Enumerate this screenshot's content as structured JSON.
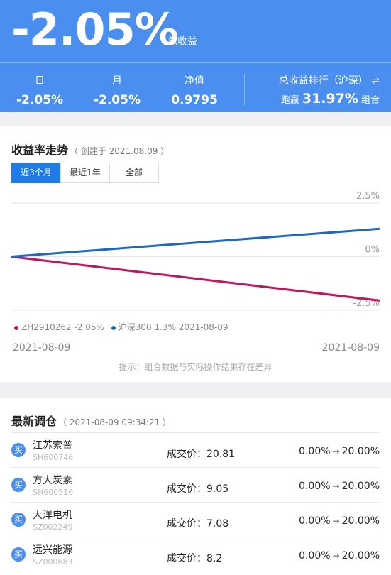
{
  "header": {
    "total_return": "-2.05%",
    "total_return_label": "总收益",
    "stats": [
      {
        "label": "日",
        "value": "-2.05%"
      },
      {
        "label": "月",
        "value": "-2.05%"
      },
      {
        "label": "净值",
        "value": "0.9795"
      }
    ],
    "rank_label": "总收益排行（沪深）",
    "rank_icon": "swap-icon",
    "rank_prefix": "跑赢",
    "rank_value": "31.97%",
    "rank_suffix": "组合"
  },
  "trend": {
    "title": "收益率走势",
    "created": "（ 创建于 2021.08.09 ）",
    "tabs": [
      "近3个月",
      "最近1年",
      "全部"
    ],
    "active_tab": 0,
    "tip": "提示：组合数据与实际操作结果存在差异",
    "legend_text": [
      "ZH2910262 -2.05%",
      "沪深300 1.3% 2021-08-09"
    ],
    "x_start": "2021-08-09",
    "x_end": "2021-08-09"
  },
  "chart_data": {
    "type": "line",
    "y_tick_labels": [
      "2.5%",
      "0%",
      "-2.5%"
    ],
    "ylim": [
      -2.5,
      2.5
    ],
    "x": [
      0,
      1
    ],
    "series": [
      {
        "name": "ZH2910262",
        "values": [
          0,
          -2.05
        ],
        "color": "#c4145a"
      },
      {
        "name": "沪深300",
        "values": [
          0,
          1.3
        ],
        "color": "#1a68c8"
      }
    ],
    "grid": true
  },
  "rebalance": {
    "title": "最新调仓",
    "time": "（ 2021-08-09 09:34:21 ）",
    "buy_label": "买",
    "price_prefix": "成交价：",
    "rows": [
      {
        "name": "江苏索普",
        "code": "SH600746",
        "price": "20.81",
        "from": "0.00%",
        "to": "20.00%"
      },
      {
        "name": "方大炭素",
        "code": "SH600516",
        "price": "9.05",
        "from": "0.00%",
        "to": "20.00%"
      },
      {
        "name": "大洋电机",
        "code": "SZ002249",
        "price": "7.08",
        "from": "0.00%",
        "to": "20.00%"
      },
      {
        "name": "远兴能源",
        "code": "SZ000683",
        "price": "8.2",
        "from": "0.00%",
        "to": "20.00%"
      }
    ]
  }
}
